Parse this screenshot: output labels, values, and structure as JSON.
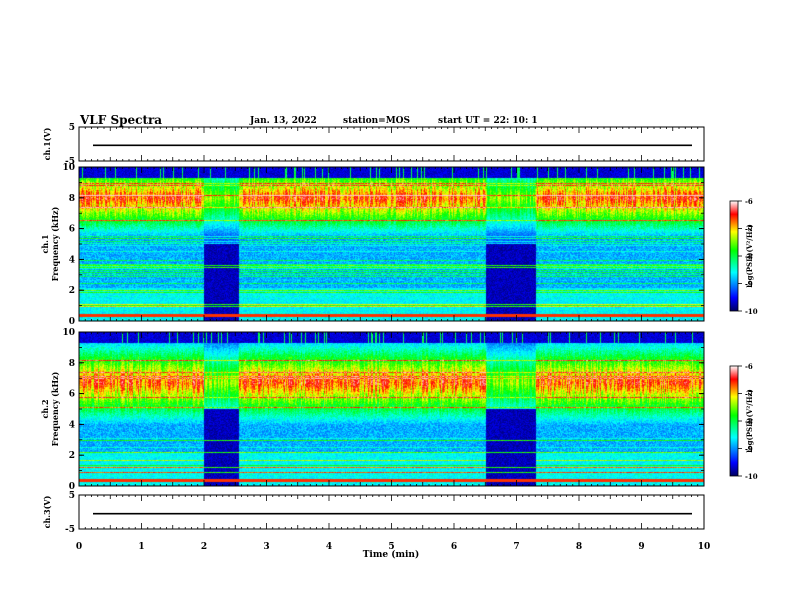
{
  "header": {
    "title": "VLF Spectra",
    "date": "Jan. 13, 2022",
    "station": "station=MOS",
    "start": "start UT =  22: 10: 1"
  },
  "chart_data": [
    {
      "type": "line",
      "ylabel": "ch.1(V)",
      "ylim": [
        -5,
        5
      ],
      "yticks": [
        "5",
        "-5"
      ],
      "series": [
        {
          "values": [
            -0.4
          ]
        }
      ]
    },
    {
      "type": "heatmap",
      "ylabel": "ch.1\nFrequency (kHz)",
      "ylim": [
        0,
        10
      ],
      "yticks": [
        "10",
        "8",
        "6",
        "4",
        "2",
        "0"
      ],
      "colorbar": {
        "label": "log(PSD)(V²/Hz)",
        "range": [
          -10,
          -6
        ],
        "ticks": [
          "-6",
          "-7",
          "-8",
          "-9",
          "-10"
        ]
      },
      "dominant_band_khz": [
        7,
        9
      ],
      "quiet_intervals_min": [
        [
          2.0,
          2.55
        ],
        [
          6.5,
          7.3
        ]
      ]
    },
    {
      "type": "heatmap",
      "ylabel": "ch.2\nFrequency (kHz)",
      "ylim": [
        0,
        10
      ],
      "yticks": [
        "10",
        "8",
        "6",
        "4",
        "2",
        "0"
      ],
      "colorbar": {
        "label": "log(PSD)(V²/Hz)",
        "range": [
          -10,
          -6
        ],
        "ticks": [
          "-6",
          "-7",
          "-8",
          "-9",
          "-10"
        ]
      },
      "dominant_band_khz": [
        5.5,
        8
      ],
      "quiet_intervals_min": [
        [
          2.0,
          2.55
        ],
        [
          6.5,
          7.3
        ]
      ]
    },
    {
      "type": "line",
      "ylabel": "ch.3(V)",
      "ylim": [
        -5,
        5
      ],
      "yticks": [
        "5",
        "-5"
      ],
      "series": [
        {
          "values": [
            -0.5
          ]
        }
      ]
    }
  ],
  "xaxis": {
    "label": "Time (min)",
    "range": [
      0,
      10
    ],
    "ticks": [
      "0",
      "1",
      "2",
      "3",
      "4",
      "5",
      "6",
      "7",
      "8",
      "9",
      "10"
    ]
  },
  "colors": {
    "low": "#000080",
    "mid": "#00ff00",
    "high": "#ff0000"
  }
}
